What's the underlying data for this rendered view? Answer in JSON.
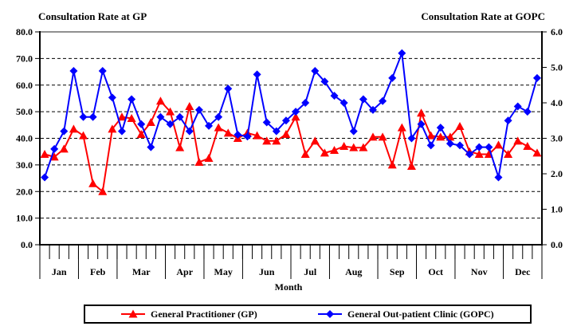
{
  "chart_data": {
    "type": "line",
    "title_left": "Consultation Rate at GP",
    "title_right": "Consultation Rate at GOPC",
    "xlabel": "Month",
    "months": [
      "Jan",
      "Feb",
      "Mar",
      "Apr",
      "May",
      "Jun",
      "Jul",
      "Aug",
      "Sep",
      "Oct",
      "Nov",
      "Dec"
    ],
    "weeks_per_month": [
      4,
      4,
      5,
      4,
      4,
      5,
      4,
      5,
      4,
      4,
      5,
      4
    ],
    "left_axis": {
      "min": 0,
      "max": 80,
      "step": 10,
      "tick_labels": [
        "0.0",
        "10.0",
        "20.0",
        "30.0",
        "40.0",
        "50.0",
        "60.0",
        "70.0",
        "80.0"
      ]
    },
    "right_axis": {
      "min": 0,
      "max": 6,
      "step": 1,
      "tick_labels": [
        "0.0",
        "1.0",
        "2.0",
        "3.0",
        "4.0",
        "5.0",
        "6.0"
      ]
    },
    "grid": {
      "horizontal_dashed": true
    },
    "legend_position": "bottom",
    "series": [
      {
        "name": "General Practitioner (GP)",
        "axis": "left",
        "color": "#ff0000",
        "marker": "triangle",
        "values": [
          34,
          33,
          36,
          43.5,
          41,
          23,
          20,
          43.5,
          48,
          47.5,
          41.5,
          46,
          54,
          50,
          36.5,
          52,
          31,
          32.5,
          44,
          42,
          40,
          42,
          41,
          39,
          39,
          41.5,
          48,
          34,
          39,
          34.5,
          35.5,
          37,
          36.5,
          36.5,
          40.5,
          40.5,
          30,
          44,
          29.5,
          49.5,
          41,
          40.5,
          40.5,
          44.5,
          35,
          34,
          34,
          37.5,
          34,
          39,
          37,
          34.5
        ]
      },
      {
        "name": "General Out-patient Clinic (GOPC)",
        "axis": "right",
        "color": "#0000ff",
        "marker": "diamond",
        "values": [
          1.9,
          2.7,
          3.2,
          4.9,
          3.6,
          3.6,
          4.9,
          4.15,
          3.2,
          4.1,
          3.4,
          2.75,
          3.6,
          3.4,
          3.6,
          3.2,
          3.8,
          3.35,
          3.6,
          4.4,
          3.1,
          3.05,
          4.8,
          3.45,
          3.2,
          3.5,
          3.75,
          4.0,
          4.9,
          4.6,
          4.2,
          4.0,
          3.2,
          4.1,
          3.8,
          4.05,
          4.7,
          5.4,
          3.0,
          3.4,
          2.8,
          3.3,
          2.85,
          2.8,
          2.55,
          2.75,
          2.75,
          1.9,
          3.5,
          3.9,
          3.75,
          4.7
        ]
      }
    ],
    "colors": {
      "gp": "#ff0000",
      "gopc": "#0000ff",
      "frame_top": "#909090",
      "axis": "#000000"
    }
  }
}
